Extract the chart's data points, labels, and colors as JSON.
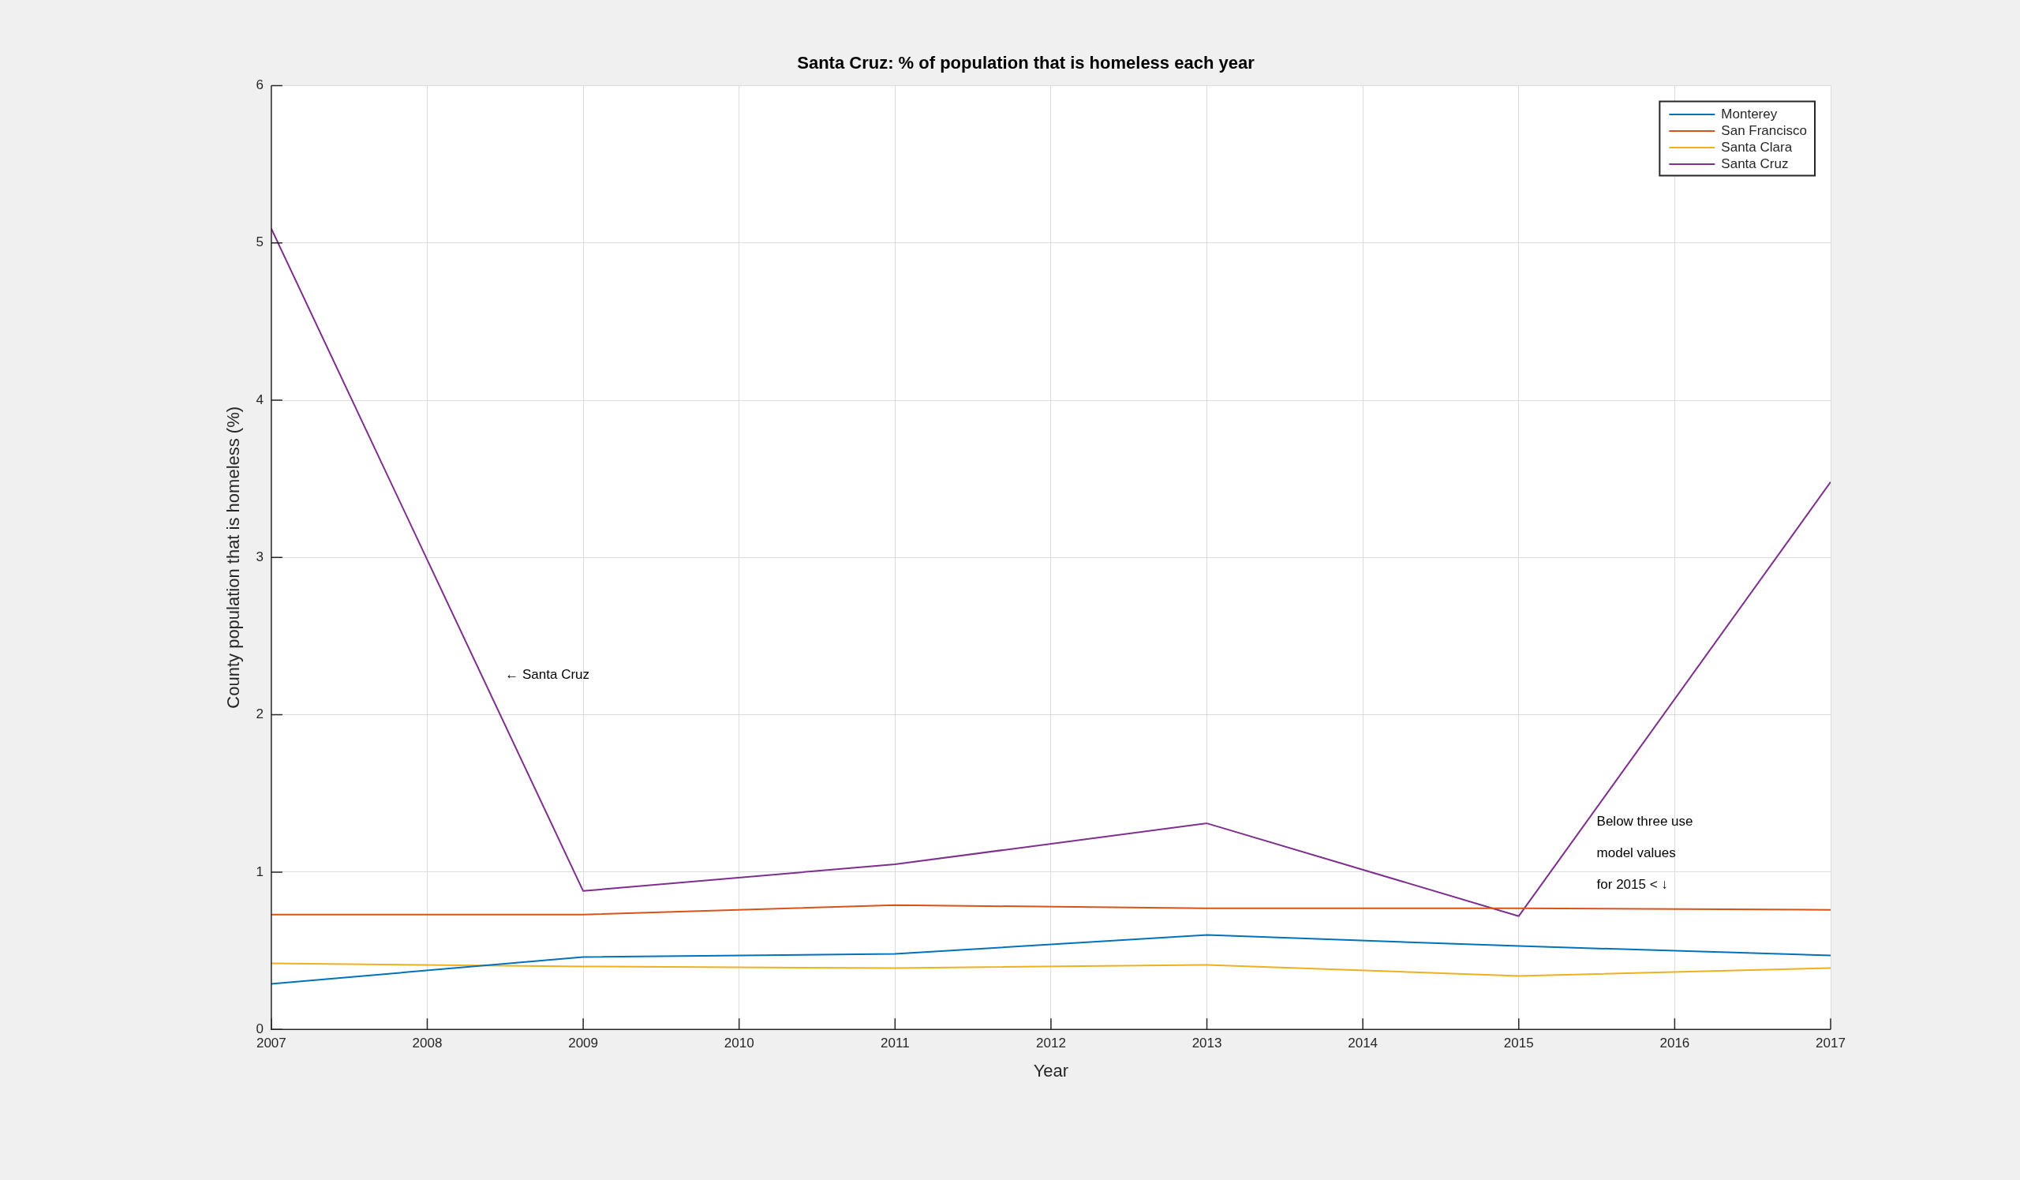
{
  "chart_data": {
    "type": "line",
    "title": "Santa Cruz: % of population that is homeless each year",
    "xlabel": "Year",
    "ylabel": "County population that is homeless (%)",
    "xlim": [
      2007,
      2017
    ],
    "xticks": [
      2007,
      2008,
      2009,
      2010,
      2011,
      2012,
      2013,
      2014,
      2015,
      2016,
      2017
    ],
    "ylim": [
      0,
      6
    ],
    "yticks": [
      0,
      1,
      2,
      3,
      4,
      5,
      6
    ],
    "grid": true,
    "legend": "top right",
    "marker": "none",
    "line_style": "solid",
    "series": [
      {
        "name": "Monterey",
        "color": "#0072bd",
        "x": [
          2007,
          2009,
          2011,
          2013,
          2015,
          2017
        ],
        "values": [
          0.29,
          0.46,
          0.48,
          0.6,
          0.53,
          0.47
        ]
      },
      {
        "name": "San Francisco",
        "color": "#d95319",
        "x": [
          2007,
          2009,
          2011,
          2013,
          2015,
          2017
        ],
        "values": [
          0.73,
          0.73,
          0.79,
          0.77,
          0.77,
          0.76
        ]
      },
      {
        "name": "Santa Clara",
        "color": "#edb120",
        "x": [
          2007,
          2009,
          2011,
          2013,
          2015,
          2017
        ],
        "values": [
          0.42,
          0.4,
          0.39,
          0.41,
          0.34,
          0.39
        ]
      },
      {
        "name": "Santa Cruz",
        "color": "#7e2f8e",
        "x": [
          2007,
          2009,
          2011,
          2013,
          2015,
          2017
        ],
        "values": [
          5.09,
          0.88,
          1.05,
          1.31,
          0.72,
          3.48
        ]
      }
    ],
    "annotations": [
      "← Santa Cruz",
      "Below three use\nmodel values\nfor 2015 < ↓"
    ]
  }
}
